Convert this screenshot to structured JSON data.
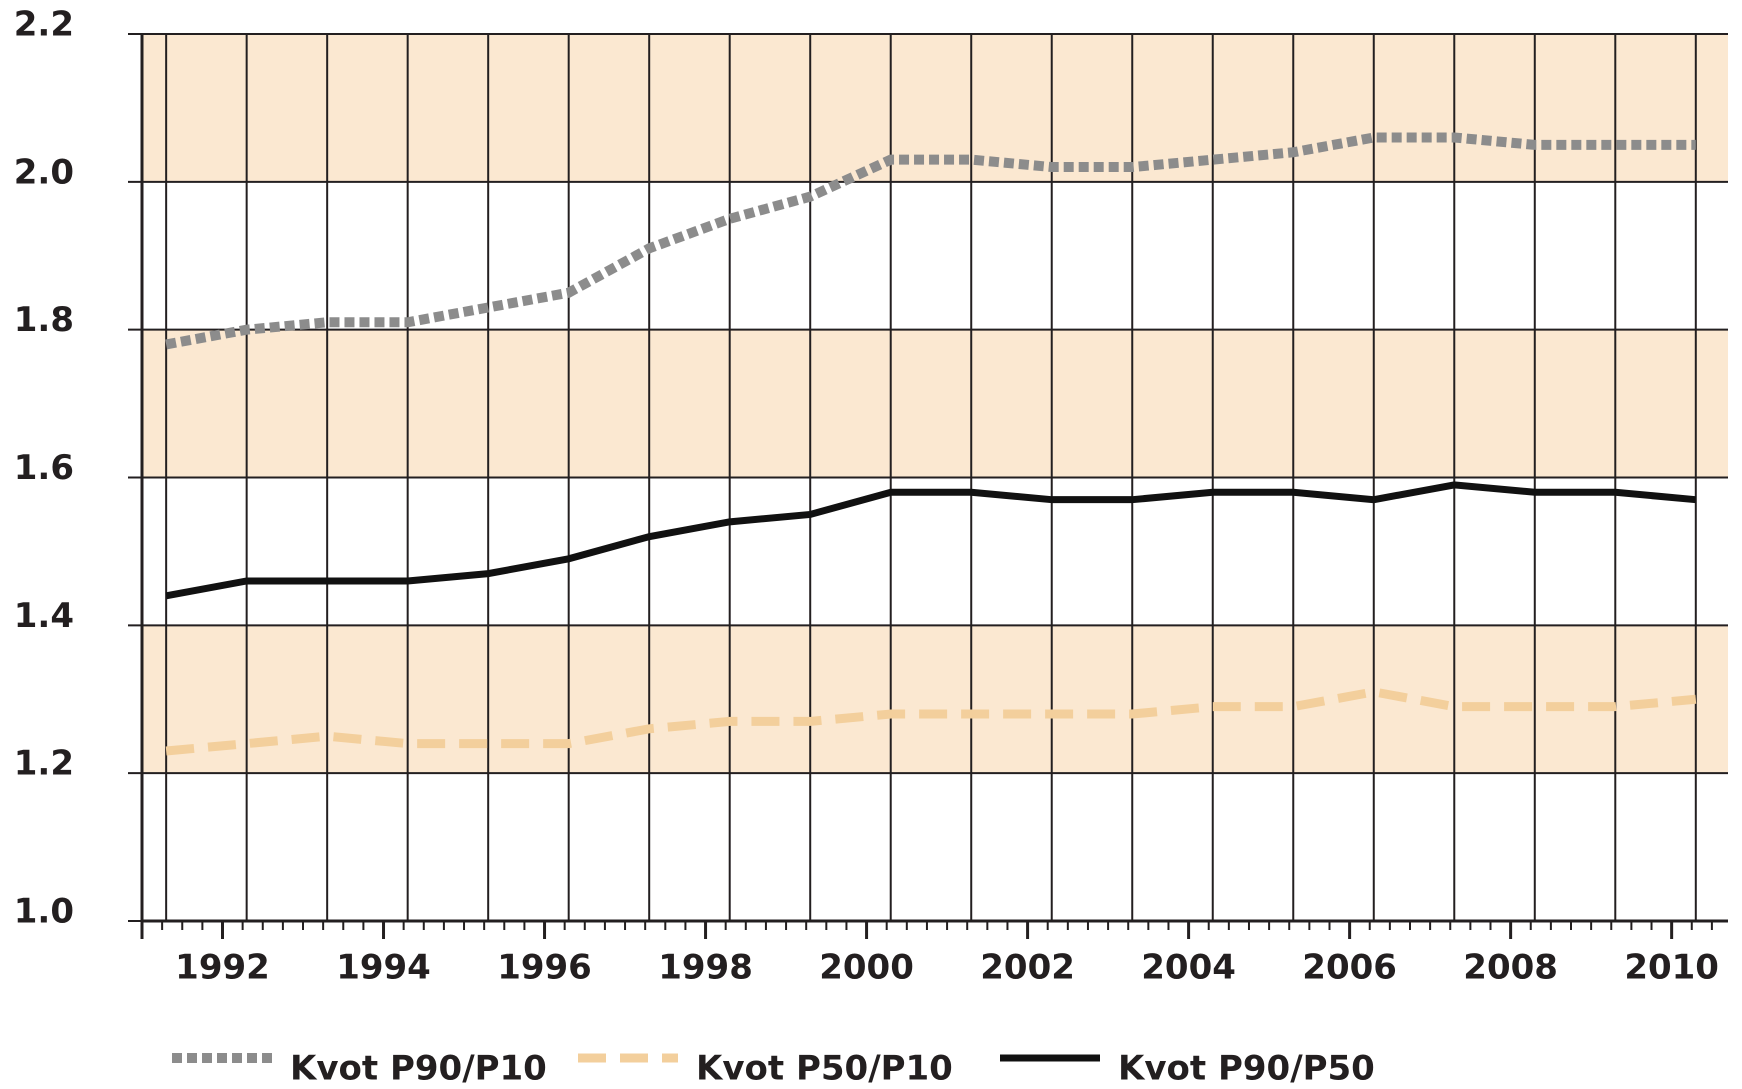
{
  "chart_data": {
    "type": "line",
    "x": [
      1991.3,
      1992.3,
      1993.3,
      1994.3,
      1995.3,
      1996.3,
      1997.3,
      1998.3,
      1999.3,
      2000.3,
      2001.3,
      2002.3,
      2003.3,
      2004.3,
      2005.3,
      2006.3,
      2007.3,
      2008.3,
      2009.3,
      2010.3
    ],
    "series": [
      {
        "name": "Kvot P90/P10",
        "color": "#8c8c8c",
        "dash": "dotted",
        "values": [
          1.78,
          1.8,
          1.81,
          1.81,
          1.83,
          1.85,
          1.91,
          1.95,
          1.98,
          2.03,
          2.03,
          2.02,
          2.02,
          2.03,
          2.04,
          2.06,
          2.06,
          2.05,
          2.05,
          2.05
        ]
      },
      {
        "name": "Kvot P50/P10",
        "color": "#f3cf9c",
        "dash": "dashed",
        "values": [
          1.23,
          1.24,
          1.25,
          1.24,
          1.24,
          1.24,
          1.26,
          1.27,
          1.27,
          1.28,
          1.28,
          1.28,
          1.28,
          1.29,
          1.29,
          1.31,
          1.29,
          1.29,
          1.29,
          1.3
        ]
      },
      {
        "name": "Kvot P90/P50",
        "color": "#111111",
        "dash": "solid",
        "values": [
          1.44,
          1.46,
          1.46,
          1.46,
          1.47,
          1.49,
          1.52,
          1.54,
          1.55,
          1.58,
          1.58,
          1.57,
          1.57,
          1.58,
          1.58,
          1.57,
          1.59,
          1.58,
          1.58,
          1.57
        ]
      }
    ],
    "xlim": [
      1991,
      2010.7
    ],
    "xticks": [
      1992,
      1994,
      1996,
      1998,
      2000,
      2002,
      2004,
      2006,
      2008,
      2010
    ],
    "ylim": [
      1.0,
      2.2
    ],
    "yticks": [
      {
        "value": 1.0,
        "label": "1.0"
      },
      1.2,
      1.4,
      1.6,
      1.8,
      {
        "value": 2.0,
        "label": "2.0"
      },
      1.2,
      2.2
    ],
    "band_color": "#fbe8d1",
    "grid": true,
    "legend": "bottom"
  }
}
